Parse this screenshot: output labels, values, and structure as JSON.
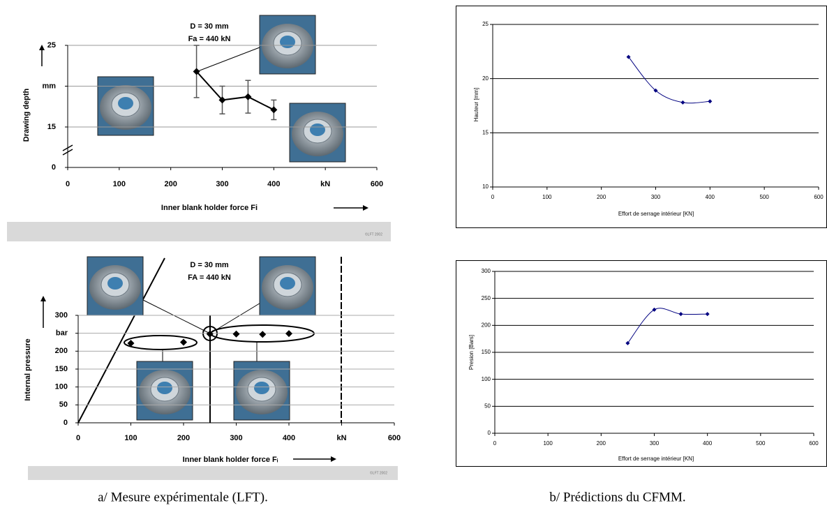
{
  "chart_data": [
    {
      "type": "line",
      "annotations": [
        "D = 30 mm",
        "Fa = 440 kN"
      ],
      "x_label": "Inner blank holder force Fi",
      "y_label": "Drawing depth",
      "footnote": "©LFT 2002",
      "x": [
        250,
        300,
        350,
        400
      ],
      "series": [
        {
          "color": "#000000",
          "values": [
            21.8,
            18.3,
            18.7,
            17.1
          ],
          "errors": [
            3.2,
            1.7,
            2,
            1.2
          ]
        }
      ],
      "xlim": [
        0,
        600
      ],
      "xticks": [
        0,
        100,
        200,
        300,
        400,
        {
          "value": 500,
          "label": "kN"
        },
        600
      ],
      "ylim": [
        0,
        25
      ],
      "yticks": [
        0,
        15,
        {
          "value": 20,
          "label": "mm"
        },
        25
      ],
      "axis_break": [
        0,
        15
      ],
      "grid": true
    },
    {
      "type": "scatter",
      "annotations": [
        "D = 30 mm",
        "FA = 440 kN"
      ],
      "x_label": "Inner blank holder force Fᵢ",
      "y_label": "Internal pressure",
      "footnote": "©LFT 2002",
      "x": [
        100,
        200,
        250,
        300,
        350,
        400
      ],
      "series": [
        {
          "color": "#000000",
          "values": [
            222,
            225,
            248,
            248,
            247,
            249
          ]
        }
      ],
      "xlim": [
        0,
        600
      ],
      "xticks": [
        0,
        100,
        200,
        300,
        400,
        {
          "value": 500,
          "label": "kN"
        },
        600
      ],
      "ylim": [
        0,
        300
      ],
      "yticks": [
        0,
        50,
        100,
        150,
        200,
        {
          "value": 250,
          "label": "bar"
        },
        300
      ],
      "grid": true
    },
    {
      "type": "line",
      "x_label": "Effort de serrage intérieur [KN]",
      "y_label": "Hauteur [mm]",
      "x": [
        250,
        300,
        350,
        400
      ],
      "series": [
        {
          "color": "#000080",
          "values": [
            22,
            18.9,
            17.8,
            17.9
          ]
        }
      ],
      "xlim": [
        0,
        600
      ],
      "xticks": [
        0,
        100,
        200,
        300,
        400,
        500,
        600
      ],
      "ylim": [
        10,
        25
      ],
      "yticks": [
        10,
        15,
        20,
        25
      ],
      "grid": true
    },
    {
      "type": "line",
      "x_label": "Effort de serrage intérieur [KN]",
      "y_label": "Presion [Bars]",
      "x": [
        250,
        300,
        350,
        400
      ],
      "series": [
        {
          "color": "#000080",
          "values": [
            167,
            229,
            221,
            221
          ]
        }
      ],
      "xlim": [
        0,
        600
      ],
      "xticks": [
        0,
        100,
        200,
        300,
        400,
        500,
        600
      ],
      "ylim": [
        0,
        300
      ],
      "yticks": [
        0,
        50,
        100,
        150,
        200,
        250,
        300
      ],
      "grid": true
    }
  ],
  "captions": [
    "a/ Mesure expérimentale (LFT).",
    "b/ Prédictions du CFMM."
  ]
}
